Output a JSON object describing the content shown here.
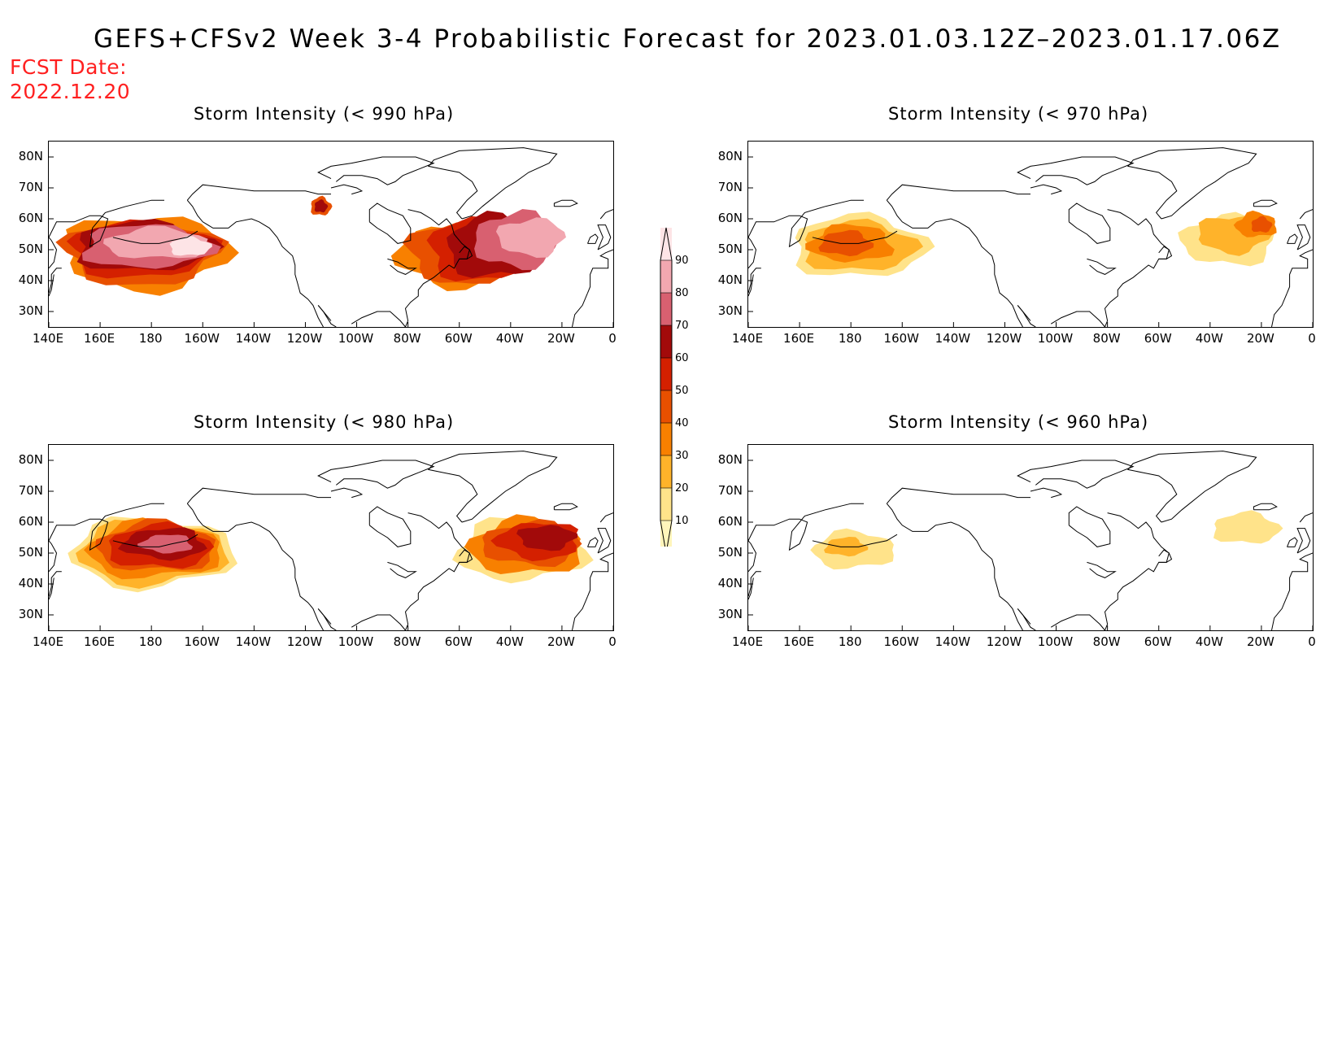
{
  "title": "GEFS+CFSv2 Week 3-4 Probabilistic Forecast for 2023.01.03.12Z–2023.01.17.06Z",
  "fcst_date_label": "FCST Date:",
  "fcst_date_value": "2022.12.20",
  "lat_ticks": [
    "80N",
    "70N",
    "60N",
    "50N",
    "40N",
    "30N"
  ],
  "lon_ticks": [
    "140E",
    "160E",
    "180",
    "160W",
    "140W",
    "120W",
    "100W",
    "80W",
    "60W",
    "40W",
    "20W",
    "0"
  ],
  "colorbar": {
    "levels": [
      10,
      20,
      30,
      40,
      50,
      60,
      70,
      80,
      90
    ],
    "colors": [
      "#fff5bb",
      "#ffe38a",
      "#ffb32a",
      "#f88000",
      "#e85000",
      "#d42000",
      "#a20a0a",
      "#d86070",
      "#f2a7b0",
      "#fde4e6"
    ]
  },
  "panels": [
    {
      "id": "p990",
      "title": "Storm Intensity (< 990 hPa)",
      "blobs": [
        {
          "lon": 178,
          "lat": 49,
          "w": 32,
          "h": 12,
          "level": 3
        },
        {
          "lon": 176,
          "lat": 49,
          "w": 30,
          "h": 10.5,
          "level": 4
        },
        {
          "lon": 176,
          "lat": 50,
          "w": 28,
          "h": 9,
          "level": 5
        },
        {
          "lon": 177,
          "lat": 51,
          "w": 27,
          "h": 8,
          "level": 6
        },
        {
          "lon": 178,
          "lat": 51,
          "w": 25,
          "h": 7,
          "level": 7
        },
        {
          "lon": 182,
          "lat": 52,
          "w": 20,
          "h": 5,
          "level": 8
        },
        {
          "lon": 195,
          "lat": 51,
          "w": 8,
          "h": 3,
          "level": 9
        },
        {
          "lon": 299,
          "lat": 48,
          "w": 23,
          "h": 10,
          "level": 3
        },
        {
          "lon": 302,
          "lat": 49,
          "w": 22,
          "h": 10,
          "level": 4
        },
        {
          "lon": 308,
          "lat": 50,
          "w": 20,
          "h": 10,
          "level": 5
        },
        {
          "lon": 314,
          "lat": 51,
          "w": 19,
          "h": 10,
          "level": 6
        },
        {
          "lon": 322,
          "lat": 53,
          "w": 16,
          "h": 9,
          "level": 7
        },
        {
          "lon": 328,
          "lat": 54,
          "w": 13,
          "h": 6,
          "level": 8
        },
        {
          "lon": 246,
          "lat": 64,
          "w": 4,
          "h": 3,
          "level": 4
        },
        {
          "lon": 246,
          "lat": 64,
          "w": 2.5,
          "h": 2,
          "level": 6
        }
      ]
    },
    {
      "id": "p970",
      "title": "Storm Intensity (< 970 hPa)",
      "blobs": [
        {
          "lon": 183,
          "lat": 51,
          "w": 26,
          "h": 10,
          "level": 1
        },
        {
          "lon": 183,
          "lat": 51,
          "w": 22,
          "h": 8,
          "level": 2
        },
        {
          "lon": 180,
          "lat": 52,
          "w": 16,
          "h": 6,
          "level": 3
        },
        {
          "lon": 178,
          "lat": 52,
          "w": 10,
          "h": 4,
          "level": 4
        },
        {
          "lon": 327,
          "lat": 53,
          "w": 18,
          "h": 8,
          "level": 1
        },
        {
          "lon": 329,
          "lat": 55,
          "w": 14,
          "h": 6,
          "level": 2
        },
        {
          "lon": 338,
          "lat": 58,
          "w": 8,
          "h": 4,
          "level": 3
        },
        {
          "lon": 340,
          "lat": 58,
          "w": 4,
          "h": 2.5,
          "level": 4
        }
      ]
    },
    {
      "id": "p980",
      "title": "Storm Intensity (< 980 hPa)",
      "blobs": [
        {
          "lon": 180,
          "lat": 50,
          "w": 32,
          "h": 11,
          "level": 1
        },
        {
          "lon": 180,
          "lat": 50,
          "w": 29,
          "h": 10,
          "level": 2
        },
        {
          "lon": 181,
          "lat": 51,
          "w": 26,
          "h": 9,
          "level": 3
        },
        {
          "lon": 182,
          "lat": 52,
          "w": 23,
          "h": 8,
          "level": 4
        },
        {
          "lon": 183,
          "lat": 52,
          "w": 20,
          "h": 7,
          "level": 5
        },
        {
          "lon": 185,
          "lat": 53,
          "w": 16,
          "h": 5,
          "level": 6
        },
        {
          "lon": 186,
          "lat": 53,
          "w": 10,
          "h": 3,
          "level": 7
        },
        {
          "lon": 324,
          "lat": 51,
          "w": 25,
          "h": 10,
          "level": 1
        },
        {
          "lon": 326,
          "lat": 52,
          "w": 22,
          "h": 9,
          "level": 3
        },
        {
          "lon": 328,
          "lat": 53,
          "w": 19,
          "h": 7,
          "level": 4
        },
        {
          "lon": 331,
          "lat": 54,
          "w": 16,
          "h": 6,
          "level": 5
        },
        {
          "lon": 334,
          "lat": 55,
          "w": 11,
          "h": 4,
          "level": 6
        }
      ]
    },
    {
      "id": "p960",
      "title": "Storm Intensity (< 960 hPa)",
      "blobs": [
        {
          "lon": 181,
          "lat": 51,
          "w": 16,
          "h": 6,
          "level": 1
        },
        {
          "lon": 178,
          "lat": 52,
          "w": 8,
          "h": 3,
          "level": 2
        },
        {
          "lon": 334,
          "lat": 58,
          "w": 13,
          "h": 5,
          "level": 1
        }
      ]
    }
  ]
}
